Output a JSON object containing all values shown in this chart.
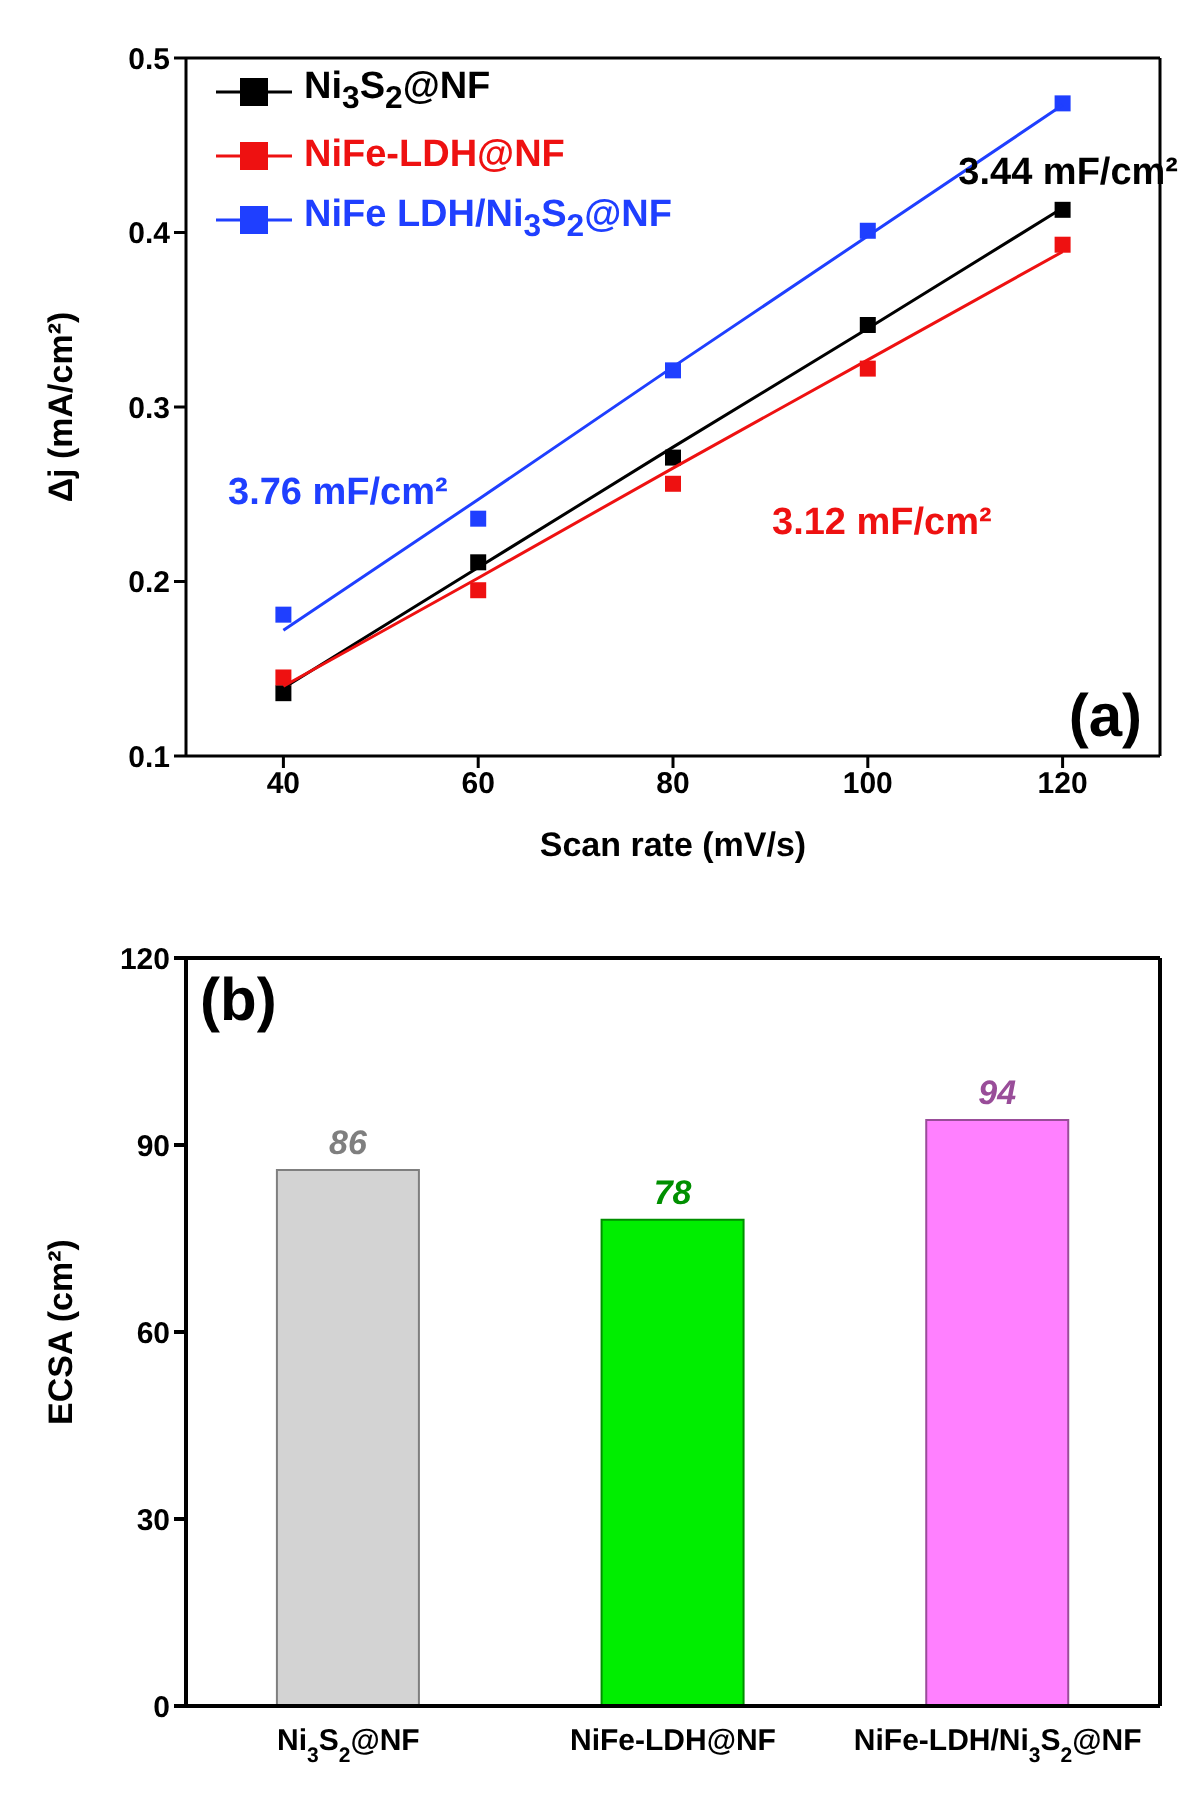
{
  "chart_data": [
    {
      "type": "scatter",
      "xlabel": "Scan rate (mV/s)",
      "ylabel": "Δj (mA/cm²)",
      "x": [
        40,
        60,
        80,
        100,
        120
      ],
      "marker": "square",
      "legend": "top left",
      "xlim": [
        30,
        130
      ],
      "xticks": [
        40,
        60,
        80,
        100,
        120
      ],
      "ylim": [
        0.1,
        0.5
      ],
      "yticks": [
        0.1,
        0.2,
        0.3,
        0.4,
        0.5
      ],
      "series": [
        {
          "name": "Ni$_{3}$S$_{2}$@NF",
          "type": "scatter",
          "color": "#000000",
          "values": [
            0.136,
            0.211,
            0.271,
            0.347,
            0.413
          ]
        },
        {
          "name": "NiFe-LDH@NF",
          "type": "scatter",
          "color": "#ee1111",
          "values": [
            0.145,
            0.195,
            0.256,
            0.322,
            0.393
          ]
        },
        {
          "name": "NiFe LDH/Ni$_{3}$S$_{2}$@NF",
          "type": "scatter",
          "color": "#1f3fff",
          "values": [
            0.181,
            0.236,
            0.321,
            0.401,
            0.474
          ]
        },
        {
          "type": "line",
          "color": "#000000",
          "marker": "none",
          "values": [
            0.139,
            0.208,
            0.277,
            0.345,
            0.414
          ]
        },
        {
          "type": "line",
          "color": "#ee1111",
          "marker": "none",
          "values": [
            0.14,
            0.202,
            0.265,
            0.327,
            0.389
          ]
        },
        {
          "type": "line",
          "color": "#1f3fff",
          "marker": "none",
          "values": [
            0.172,
            0.247,
            0.323,
            0.398,
            0.473
          ]
        }
      ],
      "annotations": [
        "3.44 mF/cm²",
        "3.12 mF/cm²",
        "3.76 mF/cm²",
        "(a)"
      ]
    },
    {
      "type": "bar",
      "ylabel": "ECSA (cm²)",
      "categories": [
        "Ni$_{3}$S$_{2}$@NF",
        "NiFe-LDH@NF",
        "NiFe-LDH/Ni$_{3}$S$_{2}$@NF"
      ],
      "values": [
        86,
        78,
        94
      ],
      "colors": [
        "#d3d3d3",
        "#00ee00",
        "#ff80ff"
      ],
      "data_labels": true,
      "ylim": [
        0,
        120
      ],
      "yticks": [
        0,
        30,
        60,
        90,
        120
      ],
      "annotations": [
        "(b)"
      ]
    }
  ]
}
